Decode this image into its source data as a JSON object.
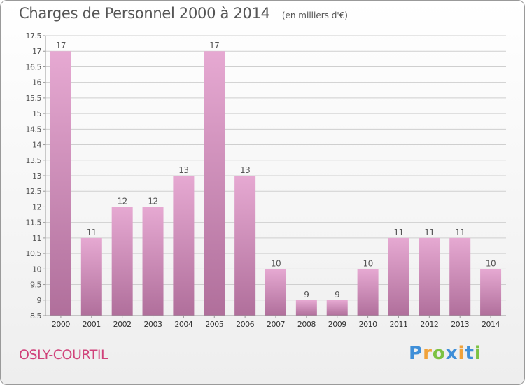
{
  "title": "Charges de Personnel 2000 à 2014",
  "unit_label": "(en milliers d'€)",
  "commune": "OSLY-COURTIL",
  "logo": {
    "text": "Proxiti",
    "letters": [
      {
        "ch": "P",
        "color": "#3f8fd8"
      },
      {
        "ch": "r",
        "color": "#f0a23a"
      },
      {
        "ch": "o",
        "color": "#7cc243"
      },
      {
        "ch": "x",
        "color": "#3f8fd8"
      },
      {
        "ch": "i",
        "color": "#f0a23a"
      },
      {
        "ch": "t",
        "color": "#3f8fd8"
      },
      {
        "ch": "i",
        "color": "#7cc243"
      }
    ]
  },
  "colors": {
    "bar_top": "#e6a9d2",
    "bar_bottom": "#b06f9b",
    "grid": "#cfcfcf",
    "text": "#555555"
  },
  "chart_data": {
    "type": "bar",
    "title": "Charges de Personnel 2000 à 2014",
    "categories": [
      "2000",
      "2001",
      "2002",
      "2003",
      "2004",
      "2005",
      "2006",
      "2007",
      "2008",
      "2009",
      "2010",
      "2011",
      "2012",
      "2013",
      "2014"
    ],
    "values": [
      17,
      11,
      12,
      12,
      13,
      17,
      13,
      10,
      9,
      9,
      10,
      11,
      11,
      11,
      10
    ],
    "ylim": [
      8.5,
      17.5
    ],
    "yticks": [
      "8.5",
      "9",
      "9.5",
      "10",
      "10.5",
      "11",
      "11.5",
      "12",
      "12.5",
      "13",
      "13.5",
      "14",
      "14.5",
      "15",
      "15.5",
      "16",
      "16.5",
      "17",
      "17.5"
    ],
    "grid": true,
    "show_value_labels": true
  }
}
